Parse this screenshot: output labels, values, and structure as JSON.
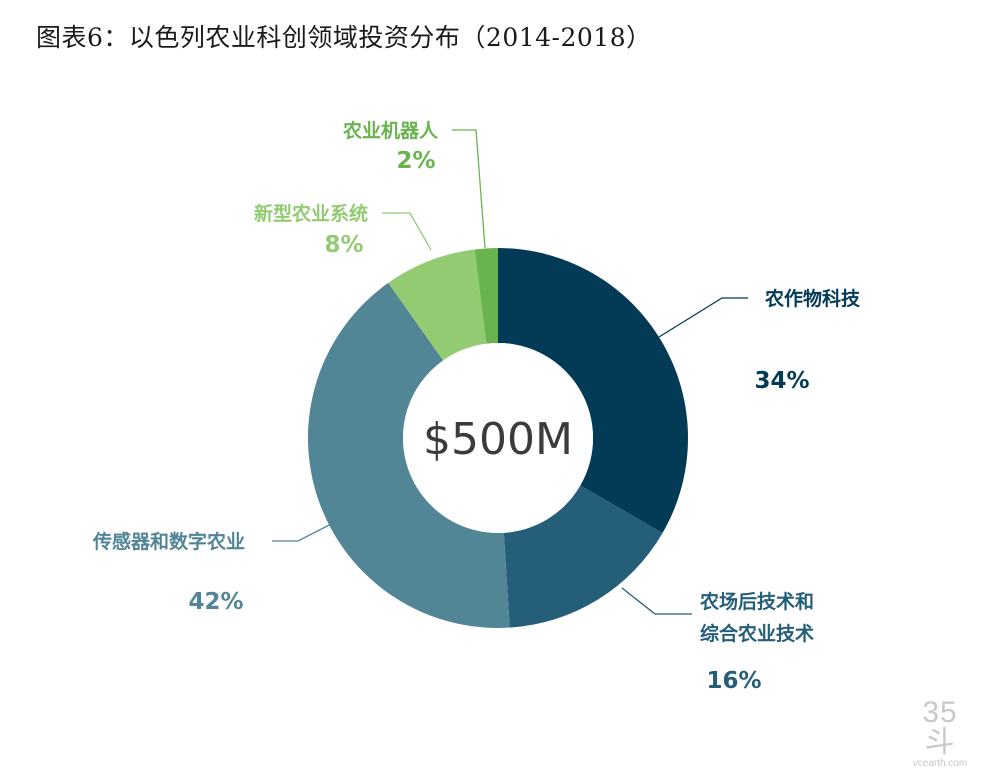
{
  "title": "图表6：以色列农业科创领域投资分布（2014-2018）",
  "chart_data": {
    "type": "pie",
    "donut": true,
    "center_label": "$500M",
    "slices": [
      {
        "label": "农作物科技",
        "value": 34,
        "value_label": "34%",
        "color": "#033a56"
      },
      {
        "label": "农场后技术和\n综合农业技术",
        "value": 16,
        "value_label": "16%",
        "color": "#255e79"
      },
      {
        "label": "传感器和数字农业",
        "value": 42,
        "value_label": "42%",
        "color": "#528596"
      },
      {
        "label": "新型农业系统",
        "value": 8,
        "value_label": "8%",
        "color": "#93cb73"
      },
      {
        "label": "农业机器人",
        "value": 2,
        "value_label": "2%",
        "color": "#6ab44f"
      }
    ]
  },
  "watermark": {
    "logo": "35斗",
    "site": "vcearth.com"
  }
}
